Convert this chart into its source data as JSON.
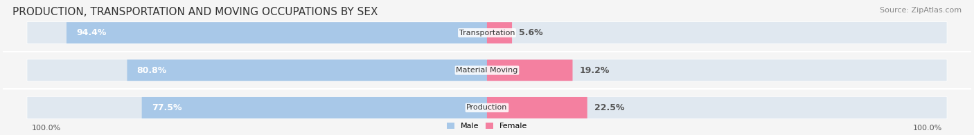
{
  "title": "PRODUCTION, TRANSPORTATION AND MOVING OCCUPATIONS BY SEX",
  "source": "Source: ZipAtlas.com",
  "categories": [
    "Transportation",
    "Material Moving",
    "Production"
  ],
  "male_values": [
    94.4,
    80.8,
    77.5
  ],
  "female_values": [
    5.6,
    19.2,
    22.5
  ],
  "male_color": "#a8c8e8",
  "female_color": "#f480a0",
  "label_color_male": "#ffffff",
  "label_color_female": "#555555",
  "bg_color": "#f0f0f0",
  "bar_bg_color": "#e0e8f0",
  "title_fontsize": 11,
  "source_fontsize": 8,
  "label_fontsize": 9,
  "tick_fontsize": 8,
  "category_fontsize": 8,
  "left_label": "100.0%",
  "right_label": "100.0%"
}
